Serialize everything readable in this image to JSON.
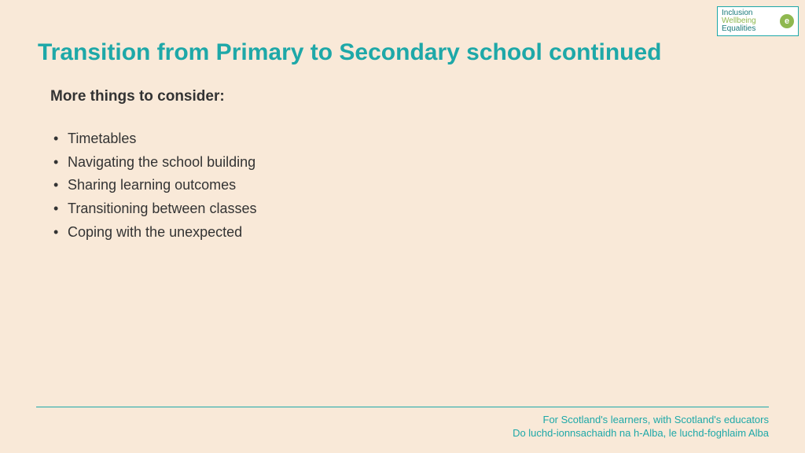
{
  "logo": {
    "line1": "Inclusion",
    "line2": "Wellbeing",
    "line3": "Equalities",
    "icon_letter": "e",
    "border_color": "#1ea8a8",
    "bg_color": "#ffffff",
    "text_color1": "#1a7a7a",
    "text_color2": "#8fb84f",
    "icon_bg": "#8fb84f"
  },
  "title": "Transition from Primary to Secondary school continued",
  "title_color": "#1ea8a8",
  "title_fontsize": 30,
  "subheading": "More things to consider:",
  "subheading_fontsize": 19,
  "bullets": [
    "Timetables",
    "Navigating the school building",
    "Sharing learning outcomes",
    "Transitioning between classes",
    "Coping with the unexpected"
  ],
  "bullet_fontsize": 18,
  "body_text_color": "#333333",
  "footer": {
    "line1": "For Scotland's learners, with Scotland's educators",
    "line2": "Do luchd-ionnsachaidh na h-Alba, le luchd-foghlaim Alba",
    "color": "#1ea8a8",
    "fontsize": 13
  },
  "background_color": "#f9e9d8",
  "divider_color": "#1ea8a8"
}
